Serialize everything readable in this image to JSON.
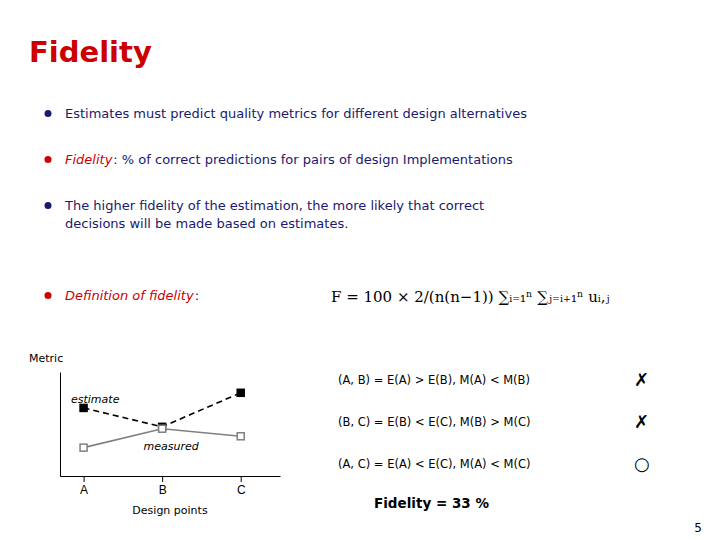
{
  "chart_data": {
    "type": "line",
    "title": "Fidelity",
    "x": [
      0,
      1,
      2
    ],
    "xlim": [
      -0.3,
      2.5
    ],
    "xticks": [
      {
        "value": 0,
        "label": "A"
      },
      {
        "value": 1,
        "label": "B"
      },
      {
        "value": 2,
        "label": "C"
      }
    ],
    "ylim": [
      0,
      1.1
    ],
    "tick_labels": "x",
    "xlabel": "Design points",
    "ylabel": "Metric",
    "series": [
      {
        "name": "estimate",
        "color": "#000000",
        "line_style": "dashed",
        "marker": "square",
        "values": [
          0.72,
          0.52,
          0.88
        ]
      },
      {
        "name": "measured",
        "color": "#808080",
        "line_style": "solid",
        "marker": "open-square",
        "values": [
          0.3,
          0.5,
          0.42
        ]
      }
    ],
    "annotations": [
      {
        "text": "Estimates must predict quality metrics for different design alternatives",
        "color": "#1a1a6e"
      },
      {
        "text": "Fidelity",
        "color": "#cc0000"
      },
      {
        "text": ": % of correct predictions for pairs of design Implementations",
        "color": "#1a1a6e"
      },
      {
        "text": "The higher fidelity of the estimation, the more likely that correct\ndecisions will be made based on estimates.",
        "color": "#1a1a6e"
      },
      {
        "text": "Definition of fidelity",
        "color": "#cc0000"
      },
      {
        "text": ":",
        "color": "#1a1a6e"
      },
      {
        "text": "F = 100 × 2/(n(n−1)) ∑ᵢ₌₁ⁿ ∑ⱼ₌ᵢ₊₁ⁿ uᵢ,ⱼ"
      },
      {
        "text": "(A, B) = E(A) > E(B), M(A) < M(B)"
      },
      {
        "text": "✗"
      },
      {
        "text": "(B, C) = E(B) < E(C), M(B) > M(C)"
      },
      {
        "text": "✗"
      },
      {
        "text": "(A, C) = E(A) < E(C), M(A) < M(C)"
      },
      {
        "text": "○"
      },
      {
        "text": "Fidelity = 33 %"
      },
      {
        "text": "5"
      }
    ]
  }
}
